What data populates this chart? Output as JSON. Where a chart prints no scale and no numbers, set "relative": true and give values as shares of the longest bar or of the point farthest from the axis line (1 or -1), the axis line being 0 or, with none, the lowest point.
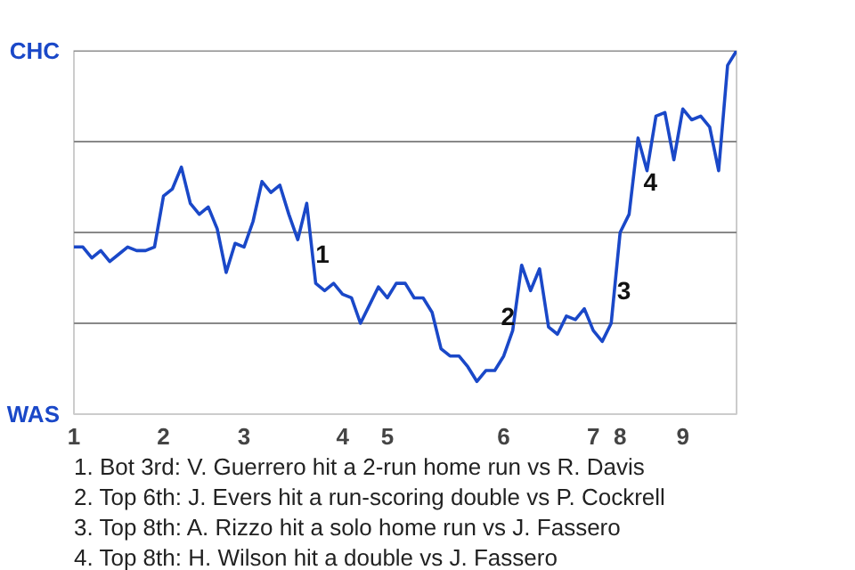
{
  "chart_data": {
    "type": "line",
    "relative": true,
    "categories": [
      "1",
      null,
      null,
      null,
      null,
      null,
      null,
      null,
      null,
      null,
      "2",
      null,
      null,
      null,
      null,
      null,
      null,
      null,
      null,
      "3",
      null,
      null,
      null,
      null,
      null,
      null,
      null,
      null,
      null,
      null,
      "4",
      null,
      null,
      null,
      null,
      "5",
      null,
      null,
      null,
      null,
      null,
      null,
      null,
      null,
      null,
      null,
      null,
      null,
      "6",
      null,
      null,
      null,
      null,
      null,
      null,
      null,
      null,
      null,
      "7",
      null,
      null,
      "8",
      null,
      null,
      null,
      null,
      null,
      null,
      "9",
      null,
      null,
      null,
      null,
      null,
      null
    ],
    "series": [
      {
        "color": "#1a48c8",
        "values": [
          0.46,
          0.46,
          0.43,
          0.45,
          0.42,
          0.44,
          0.46,
          0.45,
          0.45,
          0.46,
          0.6,
          0.62,
          0.68,
          0.58,
          0.55,
          0.57,
          0.51,
          0.39,
          0.47,
          0.46,
          0.53,
          0.64,
          0.61,
          0.63,
          0.55,
          0.48,
          0.58,
          0.36,
          0.34,
          0.36,
          0.33,
          0.32,
          0.25,
          0.3,
          0.35,
          0.32,
          0.36,
          0.36,
          0.32,
          0.32,
          0.28,
          0.18,
          0.16,
          0.16,
          0.13,
          0.09,
          0.12,
          0.12,
          0.16,
          0.23,
          0.41,
          0.34,
          0.4,
          0.24,
          0.22,
          0.27,
          0.26,
          0.29,
          0.23,
          0.2,
          0.25,
          0.5,
          0.55,
          0.76,
          0.67,
          0.82,
          0.83,
          0.7,
          0.84,
          0.81,
          0.82,
          0.79,
          0.67,
          0.96,
          1.0
        ]
      }
    ],
    "ref_lines": [
      {
        "axis": "y",
        "value": 0.25,
        "color": "#888888"
      },
      {
        "axis": "y",
        "value": 0.5,
        "color": "#888888"
      },
      {
        "axis": "y",
        "value": 0.75,
        "color": "#888888"
      },
      {
        "axis": "y",
        "value": 1,
        "color": "#888888"
      }
    ],
    "annotations": [
      "CHC",
      "WAS",
      "1",
      "2",
      "3",
      "4",
      "1. Bot 3rd: V. Guerrero hit a 2-run home run vs R. Davis",
      "2. Top 6th: J. Evers hit a run-scoring double vs P. Cockrell",
      "3. Top 8th: A. Rizzo hit a solo home run vs J. Fassero",
      "4. Top 8th: H. Wilson hit a double vs J. Fassero"
    ]
  }
}
